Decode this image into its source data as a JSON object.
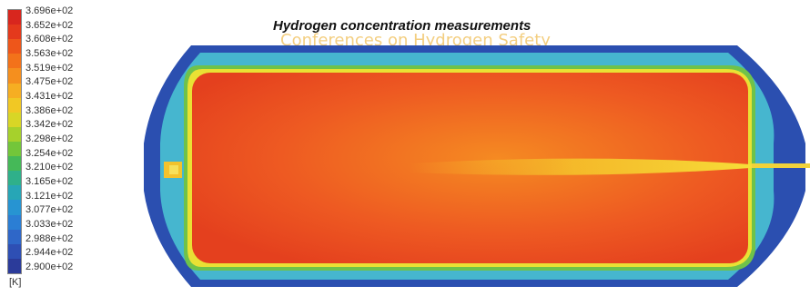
{
  "title": "Hydrogen concentration measurements",
  "watermark": "Conferences on Hydrogen Safety",
  "legend": {
    "unit": "[K]",
    "ticks": [
      "3.696e+02",
      "3.652e+02",
      "3.608e+02",
      "3.563e+02",
      "3.519e+02",
      "3.475e+02",
      "3.431e+02",
      "3.386e+02",
      "3.342e+02",
      "3.298e+02",
      "3.254e+02",
      "3.210e+02",
      "3.165e+02",
      "3.121e+02",
      "3.077e+02",
      "3.033e+02",
      "2.988e+02",
      "2.944e+02",
      "2.900e+02"
    ],
    "colors": [
      "#d8261e",
      "#e4391c",
      "#ee561a",
      "#f3721a",
      "#f58f1e",
      "#f6ae22",
      "#f1c824",
      "#d8d626",
      "#a6d12c",
      "#73c63a",
      "#45b958",
      "#2fb08a",
      "#27a6b6",
      "#2794d2",
      "#2b7ed4",
      "#2f67c8",
      "#2e4fb4",
      "#2b3b9a"
    ]
  },
  "field": {
    "outer_color": "#2b4fb0",
    "shell_color": "#46b6cf",
    "ring_color": "#e9e134",
    "core_color": "#ee5a22",
    "jet_color": "#f5b42a"
  }
}
